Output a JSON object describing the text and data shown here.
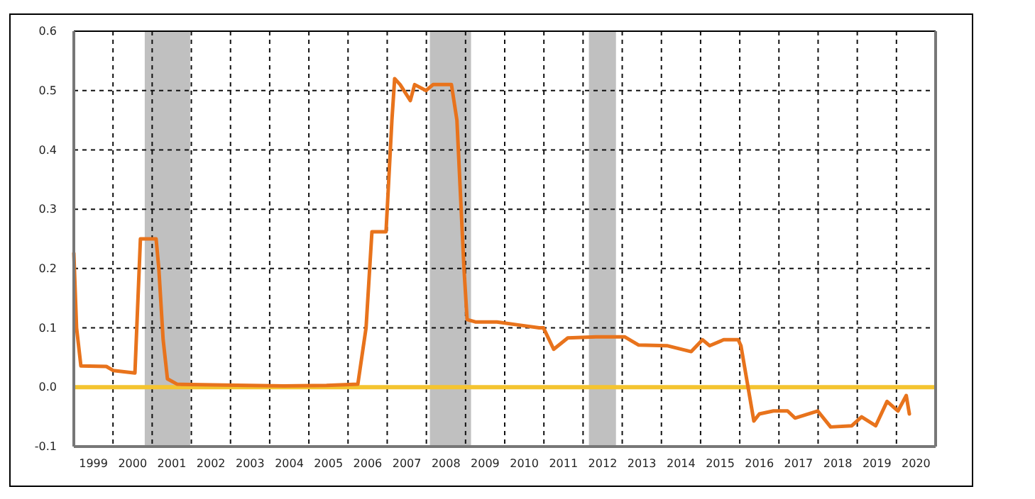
{
  "chart_data": {
    "type": "line",
    "x": [
      1999.0,
      1999.07,
      1999.18,
      1999.83,
      2000.01,
      2000.56,
      2000.7,
      2001.1,
      2001.17,
      2001.28,
      2001.39,
      2001.64,
      2002.55,
      2003.46,
      2004.36,
      2005.45,
      2006.25,
      2006.46,
      2006.61,
      2006.97,
      2007.12,
      2007.19,
      2007.33,
      2007.59,
      2007.7,
      2007.99,
      2008.17,
      2008.64,
      2008.78,
      2008.96,
      2009.04,
      2009.25,
      2009.8,
      2010.34,
      2010.88,
      2010.99,
      2011.25,
      2011.61,
      2012.33,
      2013.06,
      2013.42,
      2014.14,
      2014.76,
      2015.05,
      2015.23,
      2015.59,
      2015.96,
      2016.03,
      2016.36,
      2016.5,
      2016.86,
      2017.22,
      2017.41,
      2017.99,
      2018.32,
      2018.86,
      2019.11,
      2019.47,
      2019.76,
      2020.04,
      2020.25,
      2020.33
    ],
    "series": [
      {
        "color": "#e8731c",
        "values": [
          0.226,
          0.1,
          0.036,
          0.035,
          0.028,
          0.024,
          0.25,
          0.25,
          0.2,
          0.08,
          0.014,
          0.005,
          0.004,
          0.003,
          0.002,
          0.003,
          0.005,
          0.1,
          0.262,
          0.262,
          0.45,
          0.52,
          0.51,
          0.483,
          0.51,
          0.5,
          0.51,
          0.51,
          0.45,
          0.2,
          0.114,
          0.11,
          0.11,
          0.105,
          0.1,
          0.1,
          0.064,
          0.083,
          0.085,
          0.085,
          0.071,
          0.07,
          0.06,
          0.08,
          0.07,
          0.08,
          0.08,
          0.07,
          -0.057,
          -0.045,
          -0.04,
          -0.04,
          -0.052,
          -0.04,
          -0.067,
          -0.065,
          -0.05,
          -0.065,
          -0.024,
          -0.04,
          -0.014,
          -0.045
        ]
      }
    ],
    "xlim": [
      1999,
      2021
    ],
    "xticks": [
      {
        "value": 2000,
        "label": null
      },
      {
        "value": 2001,
        "label": null
      },
      {
        "value": 2002,
        "label": null
      },
      {
        "value": 2003,
        "label": null
      },
      {
        "value": 2004,
        "label": null
      },
      {
        "value": 2005,
        "label": null
      },
      {
        "value": 2006,
        "label": null
      },
      {
        "value": 2007,
        "label": null
      },
      {
        "value": 2008,
        "label": null
      },
      {
        "value": 2009,
        "label": null
      },
      {
        "value": 2010,
        "label": null
      },
      {
        "value": 2011,
        "label": null
      },
      {
        "value": 2012,
        "label": null
      },
      {
        "value": 2013,
        "label": null
      },
      {
        "value": 2014,
        "label": null
      },
      {
        "value": 2015,
        "label": null
      },
      {
        "value": 2016,
        "label": null
      },
      {
        "value": 2017,
        "label": null
      },
      {
        "value": 2018,
        "label": null
      },
      {
        "value": 2019,
        "label": null
      },
      {
        "value": 2020,
        "label": null
      },
      {
        "value": 1999.5,
        "label": "1999"
      },
      {
        "value": 2000.5,
        "label": "2000"
      },
      {
        "value": 2001.5,
        "label": "2001"
      },
      {
        "value": 2002.5,
        "label": "2002"
      },
      {
        "value": 2003.5,
        "label": "2003"
      },
      {
        "value": 2004.5,
        "label": "2004"
      },
      {
        "value": 2005.5,
        "label": "2005"
      },
      {
        "value": 2006.5,
        "label": "2006"
      },
      {
        "value": 2007.5,
        "label": "2007"
      },
      {
        "value": 2008.5,
        "label": "2008"
      },
      {
        "value": 2009.5,
        "label": "2009"
      },
      {
        "value": 2010.5,
        "label": "2010"
      },
      {
        "value": 2011.5,
        "label": "2011"
      },
      {
        "value": 2012.5,
        "label": "2012"
      },
      {
        "value": 2013.5,
        "label": "2013"
      },
      {
        "value": 2014.5,
        "label": "2014"
      },
      {
        "value": 2015.5,
        "label": "2015"
      },
      {
        "value": 2016.5,
        "label": "2016"
      },
      {
        "value": 2017.5,
        "label": "2017"
      },
      {
        "value": 2018.5,
        "label": "2018"
      },
      {
        "value": 2019.5,
        "label": "2019"
      },
      {
        "value": 2020.5,
        "label": "2020"
      }
    ],
    "ylim": [
      -0.1,
      0.6
    ],
    "yticks": [
      {
        "value": -0.1,
        "label": "-0.1"
      },
      {
        "value": 0,
        "label": "0.0"
      },
      {
        "value": 0.1,
        "label": "0.1"
      },
      {
        "value": 0.2,
        "label": "0.2"
      },
      {
        "value": 0.3,
        "label": "0.3"
      },
      {
        "value": 0.4,
        "label": "0.4"
      },
      {
        "value": 0.5,
        "label": "0.5"
      },
      {
        "value": 0.6,
        "label": "0.6"
      }
    ],
    "grid": true,
    "line_style": "solid",
    "ref_lines": [
      {
        "axis": "y",
        "value": 0,
        "label": null,
        "color": "#f4c430"
      }
    ],
    "bands": [
      {
        "axis": "x",
        "from": 2000.81,
        "to": 2001.97,
        "label": null,
        "color": "#c0c0c0"
      },
      {
        "axis": "x",
        "from": 2008.09,
        "to": 2009.14,
        "label": null,
        "color": "#c0c0c0"
      },
      {
        "axis": "x",
        "from": 2012.15,
        "to": 2012.84,
        "label": null,
        "color": "#c0c0c0"
      }
    ]
  }
}
